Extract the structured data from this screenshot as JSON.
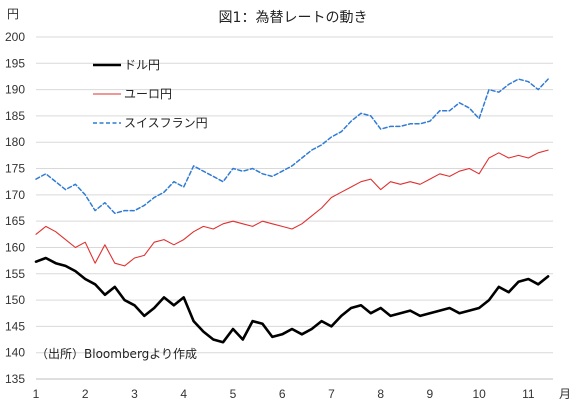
{
  "chart_data": {
    "type": "line",
    "title": "図1：為替レートの動き",
    "ylabel": "円",
    "xlabel": "月",
    "ylim": [
      135,
      200
    ],
    "yticks": [
      135,
      140,
      145,
      150,
      155,
      160,
      165,
      170,
      175,
      180,
      185,
      190,
      195,
      200
    ],
    "xlim": [
      1,
      11.5
    ],
    "xticks": [
      1,
      2,
      3,
      4,
      5,
      6,
      7,
      8,
      9,
      10,
      11
    ],
    "grid": "horizontal",
    "legend_position": "top-left",
    "source_note": "（出所）Bloombergより作成",
    "series": [
      {
        "name": "ドル円",
        "color": "#000000",
        "style": "solid-thick",
        "x": [
          1.0,
          1.2,
          1.4,
          1.6,
          1.8,
          2.0,
          2.2,
          2.4,
          2.6,
          2.8,
          3.0,
          3.2,
          3.4,
          3.6,
          3.8,
          4.0,
          4.2,
          4.4,
          4.6,
          4.8,
          5.0,
          5.2,
          5.4,
          5.6,
          5.8,
          6.0,
          6.2,
          6.4,
          6.6,
          6.8,
          7.0,
          7.2,
          7.4,
          7.6,
          7.8,
          8.0,
          8.2,
          8.4,
          8.6,
          8.8,
          9.0,
          9.2,
          9.4,
          9.6,
          9.8,
          10.0,
          10.2,
          10.4,
          10.6,
          10.8,
          11.0,
          11.2,
          11.4
        ],
        "y": [
          157.3,
          158.0,
          157.0,
          156.5,
          155.5,
          154.0,
          153.0,
          151.0,
          152.5,
          150.0,
          149.0,
          147.0,
          148.5,
          150.5,
          149.0,
          150.5,
          146.0,
          144.0,
          142.5,
          142.0,
          144.5,
          142.5,
          146.0,
          145.5,
          143.0,
          143.5,
          144.5,
          143.5,
          144.5,
          146.0,
          145.0,
          147.0,
          148.5,
          149.0,
          147.5,
          148.5,
          147.0,
          147.5,
          148.0,
          147.0,
          147.5,
          148.0,
          148.5,
          147.5,
          148.0,
          148.5,
          150.0,
          152.5,
          151.5,
          153.5,
          154.0,
          153.0,
          154.5
        ]
      },
      {
        "name": "ユーロ円",
        "color": "#e03030",
        "style": "solid-thin",
        "x": [
          1.0,
          1.2,
          1.4,
          1.6,
          1.8,
          2.0,
          2.2,
          2.4,
          2.6,
          2.8,
          3.0,
          3.2,
          3.4,
          3.6,
          3.8,
          4.0,
          4.2,
          4.4,
          4.6,
          4.8,
          5.0,
          5.2,
          5.4,
          5.6,
          5.8,
          6.0,
          6.2,
          6.4,
          6.6,
          6.8,
          7.0,
          7.2,
          7.4,
          7.6,
          7.8,
          8.0,
          8.2,
          8.4,
          8.6,
          8.8,
          9.0,
          9.2,
          9.4,
          9.6,
          9.8,
          10.0,
          10.2,
          10.4,
          10.6,
          10.8,
          11.0,
          11.2,
          11.4
        ],
        "y": [
          162.5,
          164.0,
          163.0,
          161.5,
          160.0,
          161.0,
          157.0,
          160.5,
          157.0,
          156.5,
          158.0,
          158.5,
          161.0,
          161.5,
          160.5,
          161.5,
          163.0,
          164.0,
          163.5,
          164.5,
          165.0,
          164.5,
          164.0,
          165.0,
          164.5,
          164.0,
          163.5,
          164.5,
          166.0,
          167.5,
          169.5,
          170.5,
          171.5,
          172.5,
          173.0,
          171.0,
          172.5,
          172.0,
          172.5,
          172.0,
          173.0,
          174.0,
          173.5,
          174.5,
          175.0,
          174.0,
          177.0,
          178.0,
          177.0,
          177.5,
          177.0,
          178.0,
          178.5
        ]
      },
      {
        "name": "スイスフラン円",
        "color": "#2f7bd6",
        "style": "dashed",
        "x": [
          1.0,
          1.2,
          1.4,
          1.6,
          1.8,
          2.0,
          2.2,
          2.4,
          2.6,
          2.8,
          3.0,
          3.2,
          3.4,
          3.6,
          3.8,
          4.0,
          4.2,
          4.4,
          4.6,
          4.8,
          5.0,
          5.2,
          5.4,
          5.6,
          5.8,
          6.0,
          6.2,
          6.4,
          6.6,
          6.8,
          7.0,
          7.2,
          7.4,
          7.6,
          7.8,
          8.0,
          8.2,
          8.4,
          8.6,
          8.8,
          9.0,
          9.2,
          9.4,
          9.6,
          9.8,
          10.0,
          10.2,
          10.4,
          10.6,
          10.8,
          11.0,
          11.2,
          11.4
        ],
        "y": [
          173.0,
          174.0,
          172.5,
          171.0,
          172.0,
          170.0,
          167.0,
          168.5,
          166.5,
          167.0,
          167.0,
          168.0,
          169.5,
          170.5,
          172.5,
          171.5,
          175.5,
          174.5,
          173.5,
          172.5,
          175.0,
          174.5,
          175.0,
          174.0,
          173.5,
          174.5,
          175.5,
          177.0,
          178.5,
          179.5,
          181.0,
          182.0,
          184.0,
          185.5,
          185.0,
          182.5,
          183.0,
          183.0,
          183.5,
          183.5,
          184.0,
          186.0,
          186.0,
          187.5,
          186.5,
          184.5,
          190.0,
          189.5,
          191.0,
          192.0,
          191.5,
          190.0,
          192.0
        ]
      }
    ]
  }
}
